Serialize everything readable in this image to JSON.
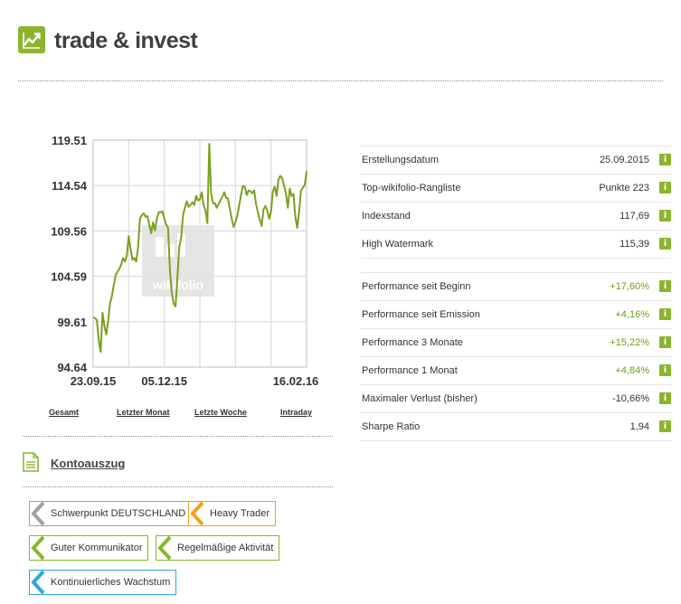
{
  "header": {
    "title": "trade & invest",
    "logo_icon": "trending-chart-icon",
    "brand_color": "#8ab52e"
  },
  "chart_data": {
    "type": "line",
    "title": "",
    "y_ticks": [
      "119.51",
      "114.54",
      "109.56",
      "104.59",
      "99.61",
      "94.64"
    ],
    "x_ticks": [
      "23.09.15",
      "05.12.15",
      "16.02.16"
    ],
    "ylim": [
      94.64,
      119.51
    ],
    "line_color": "#7aa021",
    "watermark": "wikifolio",
    "series": [
      {
        "name": "Indexstand",
        "values": [
          100.1,
          100.0,
          99.8,
          97.6,
          96.3,
          100.6,
          99.2,
          98.2,
          99.7,
          101.6,
          102.4,
          103.6,
          104.7,
          105.1,
          105.4,
          105.9,
          106.6,
          106.2,
          106.9,
          109.0,
          107.6,
          106.4,
          106.6,
          106.2,
          107.8,
          110.9,
          111.3,
          111.5,
          111.1,
          111.2,
          110.2,
          109.3,
          110.5,
          109.6,
          110.9,
          111.6,
          111.6,
          111.7,
          110.9,
          110.3,
          109.9,
          105.3,
          102.8,
          101.6,
          101.3,
          104.5,
          107.8,
          108.8,
          111.3,
          112.1,
          112.8,
          112.2,
          112.4,
          112.7,
          112.4,
          113.4,
          112.9,
          113.0,
          113.8,
          112.4,
          111.8,
          110.4,
          119.1,
          113.7,
          112.6,
          112.6,
          112.1,
          112.5,
          112.9,
          113.3,
          113.8,
          113.2,
          113.1,
          112.0,
          110.9,
          110.0,
          110.5,
          111.2,
          112.4,
          113.5,
          114.5,
          114.4,
          113.5,
          114.0,
          113.9,
          113.7,
          114.0,
          112.5,
          111.6,
          110.8,
          110.1,
          111.9,
          112.3,
          111.8,
          110.9,
          111.7,
          113.9,
          114.4,
          113.4,
          115.2,
          115.6,
          115.3,
          114.5,
          113.6,
          112.1,
          114.2,
          113.4,
          113.6,
          111.1,
          109.9,
          111.6,
          114.0,
          114.3,
          114.6,
          116.1
        ]
      }
    ]
  },
  "chart_tabs": [
    "Gesamt",
    "Letzter Monat",
    "Letzte Woche",
    "Intraday"
  ],
  "kontoauszug": {
    "label": "Kontoauszug",
    "icon": "document-icon"
  },
  "tags": [
    {
      "label": "Schwerpunkt DEUTSCHLAND",
      "color": "#a0a0a0"
    },
    {
      "label": "Heavy Trader",
      "color": "#f0a21a"
    },
    {
      "label": "Guter Kommunikator",
      "color": "#8ab52e"
    },
    {
      "label": "Regelmäßige Aktivität",
      "color": "#8ab52e"
    },
    {
      "label": "Kontinuierliches Wachstum",
      "color": "#2aa8e0"
    }
  ],
  "info_icon_glyph": "i",
  "stats_group1": [
    {
      "label": "Erstellungsdatum",
      "value": "25.09.2015",
      "positive": false
    },
    {
      "label": "Top-wikifolio-Rangliste",
      "value": "Punkte 223",
      "positive": false
    },
    {
      "label": "Indexstand",
      "value": "117,69",
      "positive": false
    },
    {
      "label": "High Watermark",
      "value": "115,39",
      "positive": false
    }
  ],
  "stats_group2": [
    {
      "label": "Performance seit Beginn",
      "value": "+17,60%",
      "positive": true
    },
    {
      "label": "Performance seit Emission",
      "value": "+4,16%",
      "positive": true
    },
    {
      "label": "Performance 3 Monate",
      "value": "+15,22%",
      "positive": true
    },
    {
      "label": "Performance 1 Monat",
      "value": "+4,84%",
      "positive": true
    },
    {
      "label": "Maximaler Verlust (bisher)",
      "value": "-10,66%",
      "positive": false
    },
    {
      "label": "Sharpe Ratio",
      "value": "1,94",
      "positive": false
    }
  ]
}
